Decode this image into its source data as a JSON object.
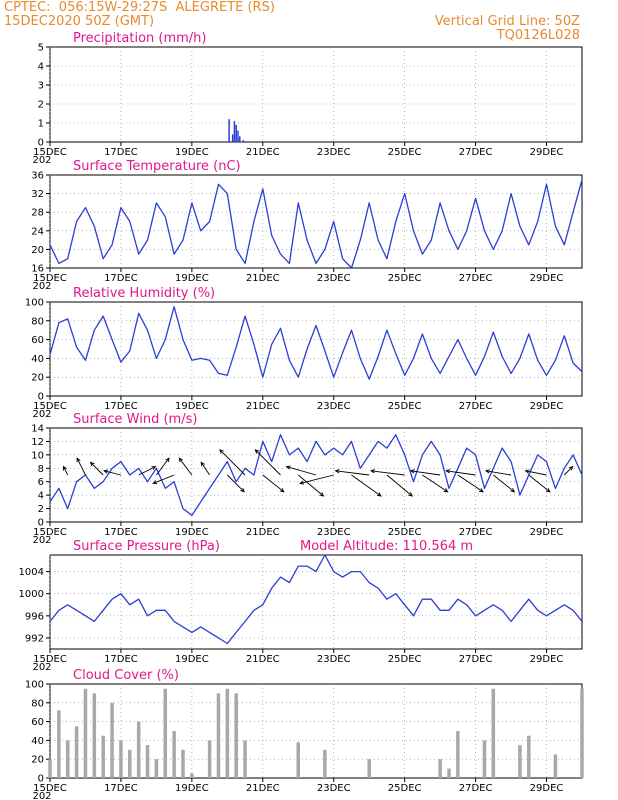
{
  "header": {
    "line1": "CPTEC:  056:15W-29:27S  ALEGRETE (RS)",
    "line2": "15DEC2020 50Z (GMT)",
    "grid_note": "Vertical Grid Line: 50Z",
    "run_code": "TQ0126L028"
  },
  "model_altitude": "Model Altitude: 110.564 m",
  "x_ticks": [
    "15DEC",
    "17DEC",
    "19DEC",
    "21DEC",
    "23DEC",
    "25DEC",
    "27DEC",
    "29DEC"
  ],
  "year_stub": "202",
  "colors": {
    "header": "#e88a2e",
    "title": "#e0188a",
    "line": "#2a3fd4",
    "bar": "#a8a8a8",
    "grid": "#888888"
  },
  "chart_data": [
    {
      "type": "bar",
      "title": "Precipitation (mm/h)",
      "ylim": [
        0,
        5
      ],
      "yticks": [
        0,
        1,
        2,
        3,
        4,
        5
      ],
      "grid": true,
      "color": "#2a3fd4",
      "x": [
        20.05,
        20.15,
        20.2,
        20.25,
        20.3,
        20.35,
        20.45
      ],
      "values": [
        1.2,
        0.4,
        1.1,
        0.9,
        0.6,
        0.3,
        0.1
      ]
    },
    {
      "type": "line",
      "title": "Surface Temperature (nC)",
      "ylim": [
        16,
        36
      ],
      "yticks": [
        16,
        20,
        24,
        28,
        32,
        36
      ],
      "grid": true,
      "color": "#2a3fd4",
      "x": [
        15.0,
        15.25,
        15.5,
        15.75,
        16.0,
        16.25,
        16.5,
        16.75,
        17.0,
        17.25,
        17.5,
        17.75,
        18.0,
        18.25,
        18.5,
        18.75,
        19.0,
        19.25,
        19.5,
        19.75,
        20.0,
        20.25,
        20.5,
        20.75,
        21.0,
        21.25,
        21.5,
        21.75,
        22.0,
        22.25,
        22.5,
        22.75,
        23.0,
        23.25,
        23.5,
        23.75,
        24.0,
        24.25,
        24.5,
        24.75,
        25.0,
        25.25,
        25.5,
        25.75,
        26.0,
        26.25,
        26.5,
        26.75,
        27.0,
        27.25,
        27.5,
        27.75,
        28.0,
        28.25,
        28.5,
        28.75,
        29.0,
        29.25,
        29.5,
        29.75,
        30.0
      ],
      "values": [
        21,
        17,
        18,
        26,
        29,
        25,
        18,
        21,
        29,
        26,
        19,
        22,
        30,
        27,
        19,
        22,
        30,
        24,
        26,
        34,
        32,
        20,
        17,
        26,
        33,
        23,
        19,
        17,
        30,
        22,
        17,
        20,
        26,
        18,
        16,
        22,
        30,
        22,
        18,
        26,
        32,
        24,
        19,
        22,
        30,
        24,
        20,
        24,
        31,
        24,
        20,
        24,
        32,
        25,
        21,
        26,
        34,
        25,
        21,
        28,
        35
      ]
    },
    {
      "type": "line",
      "title": "Relative Humidity (%)",
      "ylim": [
        0,
        100
      ],
      "yticks": [
        0,
        20,
        40,
        60,
        80,
        100
      ],
      "grid": true,
      "color": "#2a3fd4",
      "x": [
        15.0,
        15.25,
        15.5,
        15.75,
        16.0,
        16.25,
        16.5,
        16.75,
        17.0,
        17.25,
        17.5,
        17.75,
        18.0,
        18.25,
        18.5,
        18.75,
        19.0,
        19.25,
        19.5,
        19.75,
        20.0,
        20.25,
        20.5,
        20.75,
        21.0,
        21.25,
        21.5,
        21.75,
        22.0,
        22.25,
        22.5,
        22.75,
        23.0,
        23.25,
        23.5,
        23.75,
        24.0,
        24.25,
        24.5,
        24.75,
        25.0,
        25.25,
        25.5,
        25.75,
        26.0,
        26.25,
        26.5,
        26.75,
        27.0,
        27.25,
        27.5,
        27.75,
        28.0,
        28.25,
        28.5,
        28.75,
        29.0,
        29.25,
        29.5,
        29.75,
        30.0
      ],
      "values": [
        44,
        78,
        82,
        52,
        38,
        70,
        85,
        60,
        36,
        48,
        88,
        70,
        40,
        60,
        95,
        60,
        38,
        40,
        38,
        24,
        22,
        52,
        85,
        55,
        20,
        55,
        72,
        38,
        20,
        50,
        75,
        48,
        20,
        46,
        70,
        40,
        18,
        42,
        70,
        45,
        22,
        40,
        66,
        40,
        24,
        42,
        60,
        40,
        22,
        42,
        68,
        42,
        24,
        40,
        66,
        38,
        22,
        38,
        64,
        35,
        26
      ]
    },
    {
      "type": "line",
      "title": "Surface Wind (m/s)",
      "ylim": [
        0,
        14
      ],
      "yticks": [
        0,
        2,
        4,
        6,
        8,
        10,
        12,
        14
      ],
      "grid": true,
      "color": "#2a3fd4",
      "x": [
        15.0,
        15.25,
        15.5,
        15.75,
        16.0,
        16.25,
        16.5,
        16.75,
        17.0,
        17.25,
        17.5,
        17.75,
        18.0,
        18.25,
        18.5,
        18.75,
        19.0,
        19.25,
        19.5,
        19.75,
        20.0,
        20.25,
        20.5,
        20.75,
        21.0,
        21.25,
        21.5,
        21.75,
        22.0,
        22.25,
        22.5,
        22.75,
        23.0,
        23.25,
        23.5,
        23.75,
        24.0,
        24.25,
        24.5,
        24.75,
        25.0,
        25.25,
        25.5,
        25.75,
        26.0,
        26.25,
        26.5,
        26.75,
        27.0,
        27.25,
        27.5,
        27.75,
        28.0,
        28.25,
        28.5,
        28.75,
        29.0,
        29.25,
        29.5,
        29.75,
        30.0
      ],
      "values": [
        3,
        5,
        2,
        6,
        7,
        5,
        6,
        8,
        9,
        7,
        8,
        6,
        8,
        5,
        6,
        2,
        1,
        3,
        5,
        7,
        9,
        6,
        8,
        7,
        12,
        9,
        13,
        10,
        11,
        9,
        12,
        10,
        11,
        10,
        12,
        8,
        10,
        12,
        11,
        13,
        10,
        6,
        10,
        12,
        10,
        5,
        8,
        11,
        10,
        5,
        8,
        11,
        9,
        4,
        7,
        10,
        9,
        5,
        8,
        10,
        7
      ],
      "arrows": {
        "x": [
          15.5,
          16.0,
          16.5,
          17.0,
          17.5,
          18.0,
          18.5,
          19.0,
          19.5,
          20.0,
          20.5,
          21.0,
          21.5,
          22.0,
          22.5,
          23.0,
          23.5,
          24.0,
          24.5,
          25.0,
          25.5,
          26.0,
          26.5,
          27.0,
          27.5,
          28.0,
          28.5,
          29.0,
          29.5
        ],
        "u": [
          -1,
          -2,
          -3,
          -4,
          4,
          3,
          -5,
          -3,
          -2,
          4,
          -6,
          5,
          -6,
          6,
          -7,
          -8,
          7,
          -8,
          6,
          -8,
          6,
          -7,
          6,
          -7,
          5,
          -6,
          5,
          -5,
          2
        ],
        "v": [
          2,
          4,
          3,
          1,
          2,
          4,
          -2,
          4,
          3,
          -4,
          6,
          -4,
          6,
          -5,
          2,
          -2,
          -5,
          1,
          -5,
          1,
          -4,
          1,
          -4,
          1,
          -4,
          1,
          -4,
          1,
          2
        ]
      }
    },
    {
      "type": "line",
      "title": "Surface Pressure (hPa)",
      "ylim": [
        990,
        1007
      ],
      "yticks": [
        992,
        996,
        1000,
        1004
      ],
      "grid": true,
      "color": "#2a3fd4",
      "x": [
        15.0,
        15.25,
        15.5,
        15.75,
        16.0,
        16.25,
        16.5,
        16.75,
        17.0,
        17.25,
        17.5,
        17.75,
        18.0,
        18.25,
        18.5,
        18.75,
        19.0,
        19.25,
        19.5,
        19.75,
        20.0,
        20.25,
        20.5,
        20.75,
        21.0,
        21.25,
        21.5,
        21.75,
        22.0,
        22.25,
        22.5,
        22.75,
        23.0,
        23.25,
        23.5,
        23.75,
        24.0,
        24.25,
        24.5,
        24.75,
        25.0,
        25.25,
        25.5,
        25.75,
        26.0,
        26.25,
        26.5,
        26.75,
        27.0,
        27.25,
        27.5,
        27.75,
        28.0,
        28.25,
        28.5,
        28.75,
        29.0,
        29.25,
        29.5,
        29.75,
        30.0
      ],
      "values": [
        995,
        997,
        998,
        997,
        996,
        995,
        997,
        999,
        1000,
        998,
        999,
        996,
        997,
        997,
        995,
        994,
        993,
        994,
        993,
        992,
        991,
        993,
        995,
        997,
        998,
        1001,
        1003,
        1002,
        1005,
        1005,
        1004,
        1007,
        1004,
        1003,
        1004,
        1004,
        1002,
        1001,
        999,
        1000,
        998,
        996,
        999,
        999,
        997,
        997,
        999,
        998,
        996,
        997,
        998,
        997,
        995,
        997,
        999,
        997,
        996,
        997,
        998,
        997,
        995
      ]
    },
    {
      "type": "bar",
      "title": "Cloud Cover (%)",
      "ylim": [
        0,
        100
      ],
      "yticks": [
        0,
        20,
        40,
        60,
        80,
        100
      ],
      "grid": true,
      "color": "#a8a8a8",
      "x": [
        15.0,
        15.25,
        15.5,
        15.75,
        16.0,
        16.25,
        16.5,
        16.75,
        17.0,
        17.25,
        17.5,
        17.75,
        18.0,
        18.25,
        18.5,
        18.75,
        19.0,
        19.25,
        19.5,
        19.75,
        20.0,
        20.25,
        20.5,
        20.75,
        21.0,
        21.25,
        21.5,
        21.75,
        22.0,
        22.25,
        22.5,
        22.75,
        23.0,
        23.25,
        23.5,
        23.75,
        24.0,
        24.25,
        24.5,
        24.75,
        25.0,
        25.25,
        25.5,
        25.75,
        26.0,
        26.25,
        26.5,
        26.75,
        27.0,
        27.25,
        27.5,
        27.75,
        28.0,
        28.25,
        28.5,
        28.75,
        29.0,
        29.25,
        29.5,
        29.75,
        30.0
      ],
      "values": [
        20,
        72,
        40,
        55,
        95,
        90,
        45,
        80,
        40,
        30,
        60,
        35,
        20,
        95,
        50,
        30,
        5,
        0,
        40,
        90,
        95,
        90,
        40,
        0,
        0,
        0,
        0,
        0,
        38,
        0,
        0,
        30,
        0,
        0,
        0,
        0,
        20,
        0,
        0,
        0,
        0,
        0,
        0,
        0,
        20,
        10,
        50,
        0,
        0,
        40,
        95,
        0,
        0,
        35,
        45,
        0,
        0,
        25,
        0,
        0,
        95
      ]
    }
  ]
}
